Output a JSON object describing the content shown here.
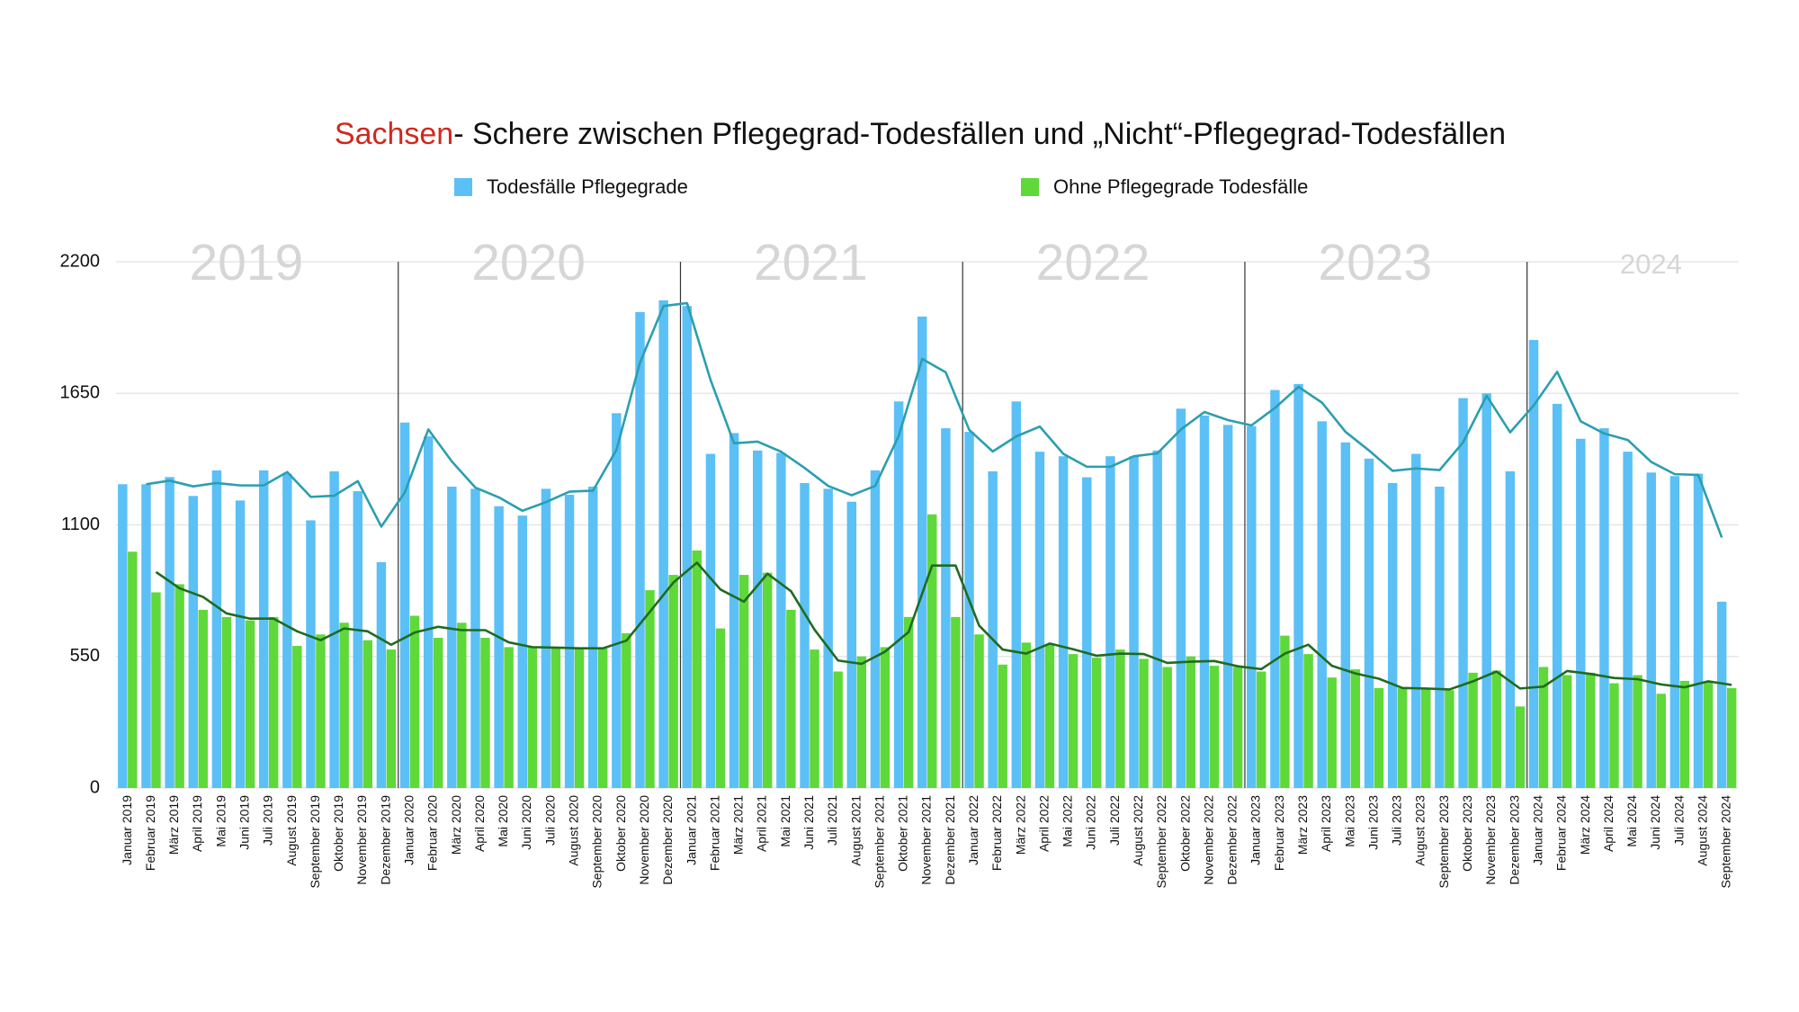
{
  "chart_data": {
    "type": "bar",
    "title_highlight": "Sachsen",
    "title": "- Schere zwischen Pflegegrad-Todesfällen und „Nicht“-Pflegegrad-Todesfällen",
    "year_labels": [
      "2019",
      "2020",
      "2021",
      "2022",
      "2023",
      "2024"
    ],
    "categories": [
      "Januar 2019",
      "Februar 2019",
      "März 2019",
      "April 2019",
      "Mai 2019",
      "Juni 2019",
      "Juli 2019",
      "August 2019",
      "September 2019",
      "Oktober 2019",
      "November 2019",
      "Dezember 2019",
      "Januar 2020",
      "Februar 2020",
      "März 2020",
      "April 2020",
      "Mai 2020",
      "Juni 2020",
      "Juli 2020",
      "August 2020",
      "September 2020",
      "Oktober 2020",
      "November 2020",
      "Dezember 2020",
      "Januar 2021",
      "Februar 2021",
      "März 2021",
      "April 2021",
      "Mai 2021",
      "Juni 2021",
      "Juli 2021",
      "August 2021",
      "September 2021",
      "Oktober 2021",
      "November 2021",
      "Dezember 2021",
      "Januar 2022",
      "Februar 2022",
      "März 2022",
      "April 2022",
      "Mai 2022",
      "Juni 2022",
      "Juli 2022",
      "August 2022",
      "September 2022",
      "Oktober 2022",
      "November 2022",
      "Dezember 2022",
      "Januar 2023",
      "Februar 2023",
      "März 2023",
      "April 2023",
      "Mai 2023",
      "Juni 2023",
      "Juli 2023",
      "August 2023",
      "September 2023",
      "Oktober 2023",
      "November 2023",
      "Dezember 2023",
      "Januar 2024",
      "Februar 2024",
      "März 2024",
      "April 2024",
      "Mai 2024",
      "Juni 2024",
      "Juli 2024",
      "August 2024",
      "September 2024"
    ],
    "series": [
      {
        "name": "Todesfälle Pflegegrade",
        "color": "#5bc0f5",
        "values": [
          1270,
          1270,
          1300,
          1221,
          1328,
          1202,
          1328,
          1314,
          1119,
          1324,
          1241,
          944,
          1528,
          1470,
          1260,
          1251,
          1178,
          1139,
          1251,
          1226,
          1260,
          1567,
          1990,
          2039,
          2015,
          1397,
          1484,
          1411,
          1401,
          1275,
          1251,
          1197,
          1328,
          1616,
          1971,
          1504,
          1489,
          1324,
          1616,
          1406,
          1387,
          1299,
          1387,
          1387,
          1411,
          1586,
          1557,
          1518,
          1513,
          1664,
          1689,
          1533,
          1445,
          1377,
          1275,
          1397,
          1260,
          1630,
          1650,
          1324,
          1873,
          1606,
          1460,
          1504,
          1406,
          1319,
          1304,
          1314,
          779
        ]
      },
      {
        "name": "Ohne Pflegegrade Todesfälle",
        "color": "#5fd83a",
        "values": [
          988,
          818,
          852,
          745,
          715,
          701,
          715,
          594,
          642,
          691,
          618,
          579,
          720,
          628,
          691,
          628,
          589,
          589,
          584,
          584,
          584,
          647,
          827,
          891,
          993,
          667,
          891,
          900,
          745,
          579,
          487,
          550,
          589,
          715,
          1144,
          715,
          642,
          516,
          608,
          599,
          560,
          545,
          579,
          540,
          506,
          550,
          511,
          506,
          487,
          637,
          560,
          462,
          496,
          418,
          418,
          414,
          409,
          482,
          491,
          341,
          506,
          472,
          482,
          438,
          472,
          394,
          448,
          443,
          418
        ]
      }
    ],
    "lines": [
      {
        "color": "#2a9fb0",
        "values": [
          null,
          1270,
          1285,
          1261,
          1275,
          1265,
          1265,
          1321,
          1217,
          1222,
          1283,
          1093,
          1236,
          1499,
          1365,
          1256,
          1215,
          1159,
          1195,
          1239,
          1243,
          1414,
          1779,
          2015,
          2027,
          1706,
          1441,
          1448,
          1406,
          1338,
          1263,
          1224,
          1263,
          1472,
          1794,
          1738,
          1497,
          1407,
          1470,
          1511,
          1397,
          1343,
          1343,
          1387,
          1399,
          1499,
          1572,
          1538,
          1516,
          1589,
          1677,
          1611,
          1489,
          1411,
          1326,
          1336,
          1329,
          1445,
          1640,
          1487,
          1599,
          1740,
          1533,
          1482,
          1455,
          1363,
          1312,
          1309,
          1047
        ]
      },
      {
        "color": "#1f6b1f",
        "values": [
          null,
          903,
          835,
          799,
          730,
          708,
          708,
          655,
          618,
          667,
          655,
          599,
          650,
          674,
          660,
          660,
          609,
          589,
          587,
          584,
          584,
          616,
          737,
          859,
          942,
          830,
          779,
          896,
          823,
          662,
          533,
          519,
          570,
          652,
          930,
          930,
          679,
          579,
          562,
          604,
          580,
          553,
          562,
          560,
          523,
          528,
          531,
          509,
          497,
          562,
          599,
          511,
          479,
          457,
          418,
          416,
          412,
          446,
          487,
          416,
          424,
          489,
          477,
          460,
          455,
          433,
          421,
          446,
          431
        ]
      }
    ],
    "ylim": [
      0,
      2200
    ],
    "yticks": [
      0,
      550,
      1100,
      1650,
      2200
    ],
    "grid": true
  }
}
